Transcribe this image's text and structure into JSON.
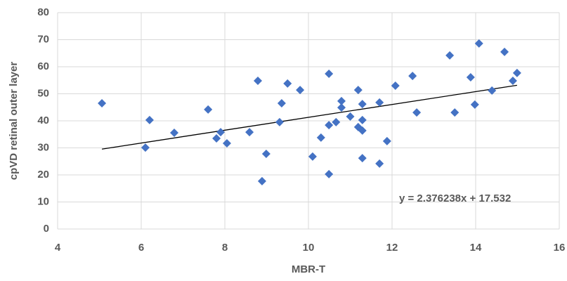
{
  "chart_data": {
    "type": "scatter",
    "x_label": "MBR-T",
    "y_label": "cpVD retinal outer layer",
    "color": "#4472c4",
    "x": [
      5.06,
      6.1,
      6.2,
      6.79,
      7.6,
      7.8,
      7.9,
      8.05,
      8.59,
      8.79,
      8.89,
      8.99,
      9.31,
      9.36,
      9.5,
      9.8,
      10.1,
      10.3,
      10.49,
      10.49,
      10.49,
      10.66,
      10.79,
      10.79,
      11.0,
      11.19,
      11.19,
      11.29,
      11.29,
      11.29,
      11.29,
      11.7,
      11.7,
      11.88,
      12.08,
      12.49,
      12.59,
      13.38,
      13.5,
      13.88,
      13.98,
      14.08,
      14.39,
      14.69,
      14.89,
      14.99
    ],
    "values": [
      46.5,
      30.1,
      40.3,
      35.6,
      44.2,
      33.5,
      35.8,
      31.7,
      35.8,
      54.8,
      17.7,
      27.8,
      39.5,
      46.5,
      53.8,
      51.4,
      26.8,
      33.8,
      57.4,
      38.4,
      20.3,
      39.5,
      47.3,
      44.9,
      41.6,
      51.4,
      37.7,
      40.3,
      46.2,
      36.4,
      26.2,
      46.8,
      24.2,
      32.5,
      53.0,
      56.6,
      43.1,
      64.2,
      43.1,
      56.1,
      46.0,
      68.6,
      51.2,
      65.5,
      54.8,
      57.7
    ],
    "trendline": {
      "slope": 2.376238,
      "intercept": 17.532,
      "label": "y = 2.376238x + 17.532",
      "color": "#000000"
    },
    "xlim": [
      4,
      16
    ],
    "xticks": [
      4,
      6,
      8,
      10,
      12,
      14,
      16
    ],
    "ylim": [
      0,
      80
    ],
    "yticks": [
      0,
      10,
      20,
      30,
      40,
      50,
      60,
      70,
      80
    ],
    "grid": true
  }
}
